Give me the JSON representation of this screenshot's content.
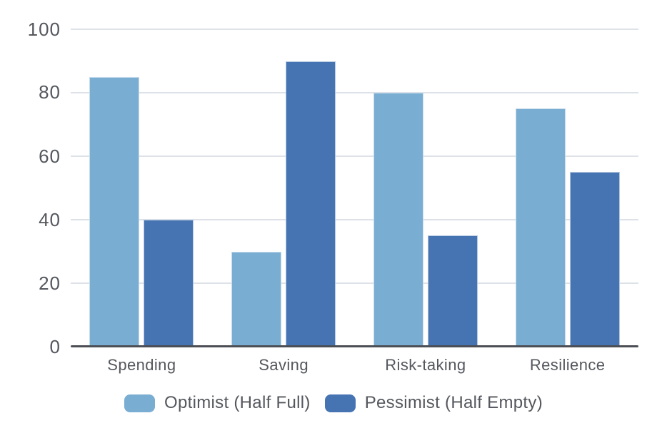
{
  "chart_data": {
    "type": "bar",
    "categories": [
      "Spending",
      "Saving",
      "Risk-taking",
      "Resilience"
    ],
    "series": [
      {
        "name": "Optimist (Half Full)",
        "color": "#7AADD2",
        "values": [
          85,
          30,
          80,
          75
        ]
      },
      {
        "name": "Pessimist (Half Empty)",
        "color": "#4673B2",
        "values": [
          40,
          90,
          35,
          55
        ]
      }
    ],
    "title": "",
    "xlabel": "",
    "ylabel": "",
    "ylim": [
      0,
      100
    ],
    "yticks": [
      0,
      20,
      40,
      60,
      80,
      100
    ],
    "grid": true,
    "legend_position": "bottom"
  },
  "colors": {
    "background": "#ffffff",
    "gridline": "#dde1e8",
    "axis_line": "#4b4e54",
    "tick_text": "#54575d",
    "optimist": "#7AADD2",
    "pessimist": "#4673B2"
  }
}
